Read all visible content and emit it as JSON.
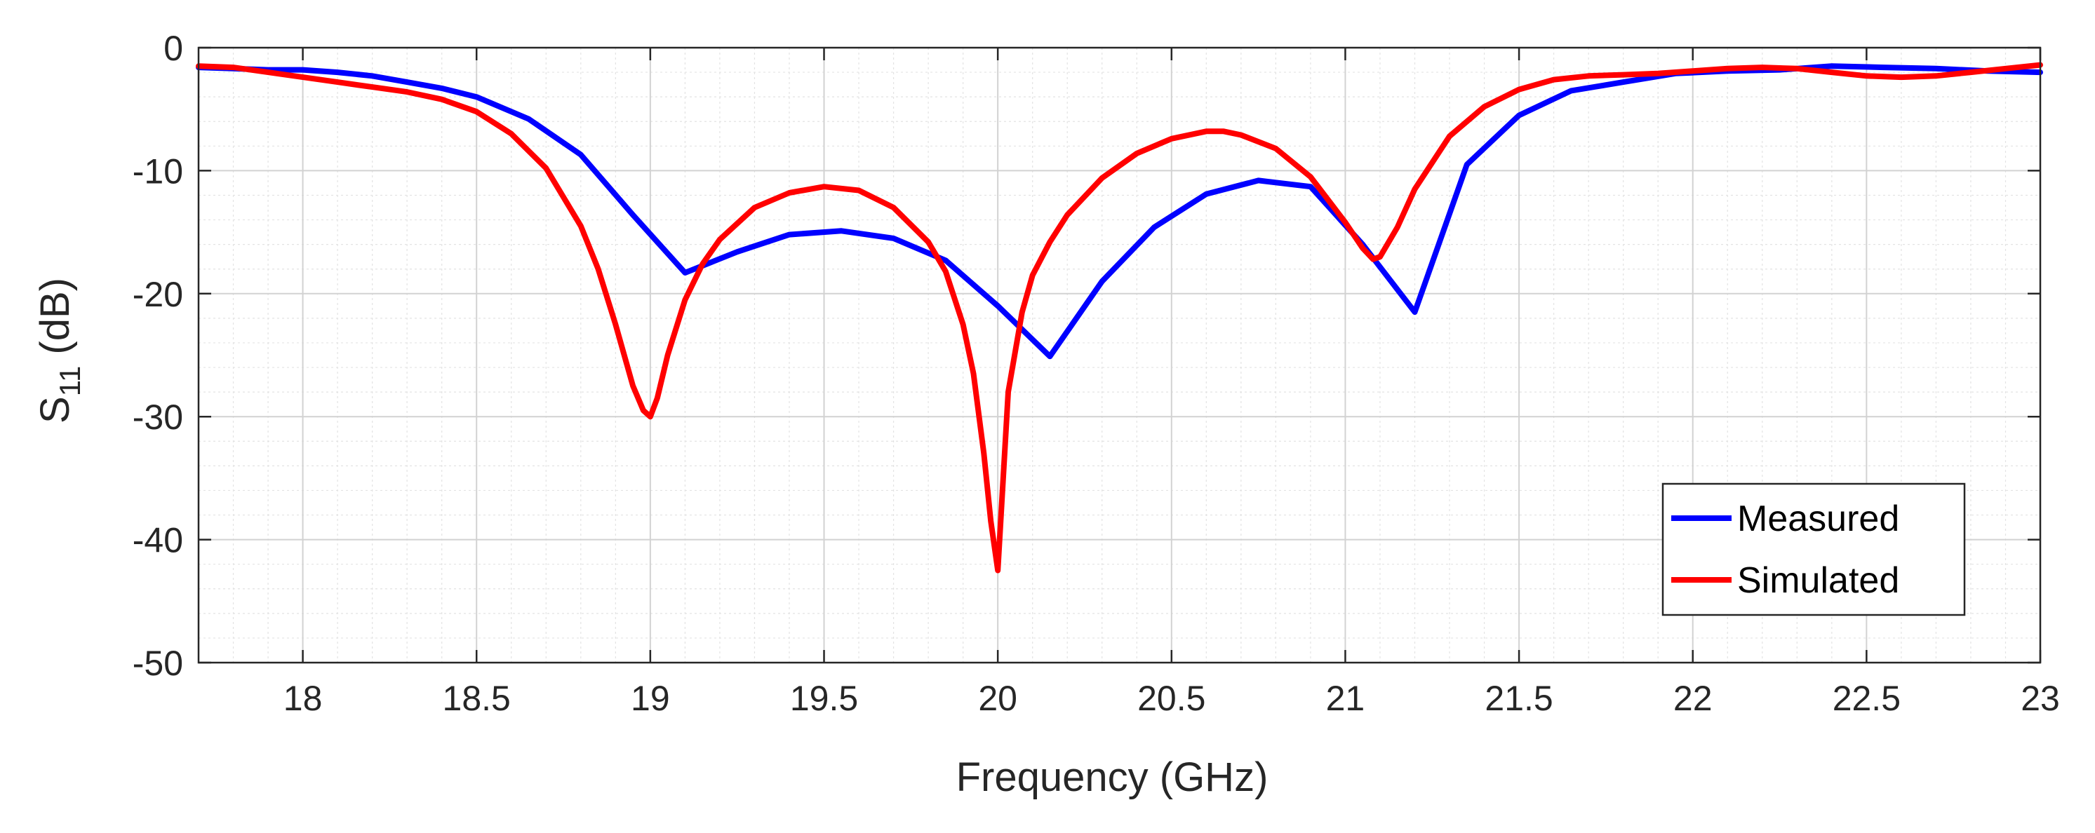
{
  "chart_data": {
    "type": "line",
    "title": "",
    "xlabel": "Frequency (GHz)",
    "ylabel": {
      "main": "S",
      "subscript": "11",
      "unit": " (dB)"
    },
    "xlim": [
      17.7,
      23
    ],
    "ylim": [
      -50,
      0
    ],
    "xticks": [
      18,
      18.5,
      19,
      19.5,
      20,
      20.5,
      21,
      21.5,
      22,
      22.5,
      23
    ],
    "xtick_labels": [
      "18",
      "18.5",
      "19",
      "19.5",
      "20",
      "20.5",
      "21",
      "21.5",
      "22",
      "22.5",
      "23"
    ],
    "yticks": [
      0,
      -10,
      -20,
      -30,
      -40,
      -50
    ],
    "ytick_labels": [
      "0",
      "-10",
      "-20",
      "-30",
      "-40",
      "-50"
    ],
    "grid": true,
    "minor_grid": true,
    "legend_position": "bottom-right",
    "series": [
      {
        "name": "Measured",
        "color": "#0000ff",
        "x": [
          17.7,
          17.8,
          17.9,
          18.0,
          18.1,
          18.2,
          18.3,
          18.4,
          18.5,
          18.65,
          18.8,
          18.95,
          19.1,
          19.25,
          19.4,
          19.55,
          19.7,
          19.85,
          20.0,
          20.15,
          20.3,
          20.45,
          20.6,
          20.75,
          20.9,
          21.05,
          21.2,
          21.35,
          21.5,
          21.65,
          21.8,
          21.95,
          22.1,
          22.25,
          22.4,
          22.55,
          22.7,
          22.85,
          23.0
        ],
        "y": [
          -1.6,
          -1.7,
          -1.8,
          -1.8,
          -2.0,
          -2.3,
          -2.8,
          -3.3,
          -4.0,
          -5.8,
          -8.7,
          -13.6,
          -18.3,
          -16.6,
          -15.2,
          -14.9,
          -15.5,
          -17.3,
          -21.0,
          -25.1,
          -19.0,
          -14.6,
          -11.9,
          -10.8,
          -11.3,
          -16.0,
          -21.5,
          -9.5,
          -5.5,
          -3.5,
          -2.8,
          -2.1,
          -1.9,
          -1.8,
          -1.5,
          -1.6,
          -1.7,
          -1.9,
          -2.0
        ]
      },
      {
        "name": "Simulated",
        "color": "#ff0000",
        "x": [
          17.7,
          17.8,
          17.9,
          18.0,
          18.1,
          18.2,
          18.3,
          18.4,
          18.5,
          18.6,
          18.7,
          18.8,
          18.85,
          18.9,
          18.95,
          18.98,
          19.0,
          19.02,
          19.05,
          19.1,
          19.15,
          19.2,
          19.3,
          19.4,
          19.5,
          19.6,
          19.7,
          19.8,
          19.85,
          19.9,
          19.93,
          19.96,
          19.98,
          20.0,
          20.03,
          20.07,
          20.1,
          20.15,
          20.2,
          20.3,
          20.4,
          20.5,
          20.6,
          20.65,
          20.7,
          20.8,
          20.9,
          21.0,
          21.05,
          21.08,
          21.1,
          21.15,
          21.2,
          21.3,
          21.4,
          21.5,
          21.6,
          21.7,
          21.8,
          21.9,
          22.0,
          22.1,
          22.2,
          22.3,
          22.4,
          22.5,
          22.6,
          22.7,
          22.8,
          22.9,
          23.0
        ],
        "y": [
          -1.5,
          -1.6,
          -2.0,
          -2.4,
          -2.8,
          -3.2,
          -3.6,
          -4.2,
          -5.2,
          -7.0,
          -9.8,
          -14.5,
          -18.0,
          -22.5,
          -27.5,
          -29.5,
          -30.0,
          -28.5,
          -25.0,
          -20.5,
          -17.6,
          -15.6,
          -13.0,
          -11.8,
          -11.3,
          -11.6,
          -13.0,
          -15.8,
          -18.2,
          -22.5,
          -26.5,
          -33.0,
          -38.5,
          -42.5,
          -28.0,
          -21.5,
          -18.5,
          -15.8,
          -13.6,
          -10.6,
          -8.6,
          -7.4,
          -6.8,
          -6.8,
          -7.1,
          -8.2,
          -10.5,
          -14.2,
          -16.3,
          -17.2,
          -17.0,
          -14.6,
          -11.5,
          -7.2,
          -4.8,
          -3.4,
          -2.6,
          -2.3,
          -2.2,
          -2.1,
          -1.9,
          -1.7,
          -1.6,
          -1.7,
          -2.0,
          -2.3,
          -2.4,
          -2.3,
          -2.0,
          -1.7,
          -1.4
        ]
      }
    ]
  }
}
